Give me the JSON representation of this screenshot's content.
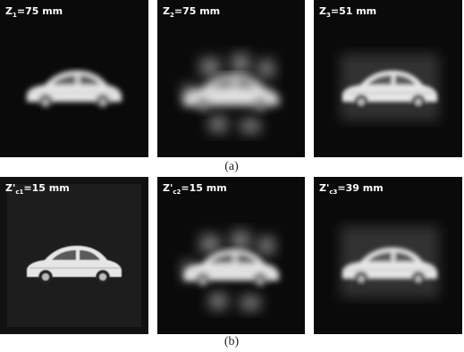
{
  "panels": [
    {
      "label": {
        "main": "Z",
        "sub": "1",
        "rest": "=75 mm"
      }
    },
    {
      "label": {
        "main": "Z",
        "sub": "2",
        "rest": "=75 mm"
      }
    },
    {
      "label": {
        "main": "Z",
        "sub": "3",
        "rest": "=51 mm"
      }
    },
    {
      "label": {
        "main": "Z'",
        "sub": "c1",
        "rest": "=15 mm"
      }
    },
    {
      "label": {
        "main": "Z'",
        "sub": "c2",
        "rest": "=15 mm"
      }
    },
    {
      "label": {
        "main": "Z'",
        "sub": "c3",
        "rest": "=39 mm"
      }
    }
  ],
  "captions": [
    "(a)",
    "(b)"
  ]
}
